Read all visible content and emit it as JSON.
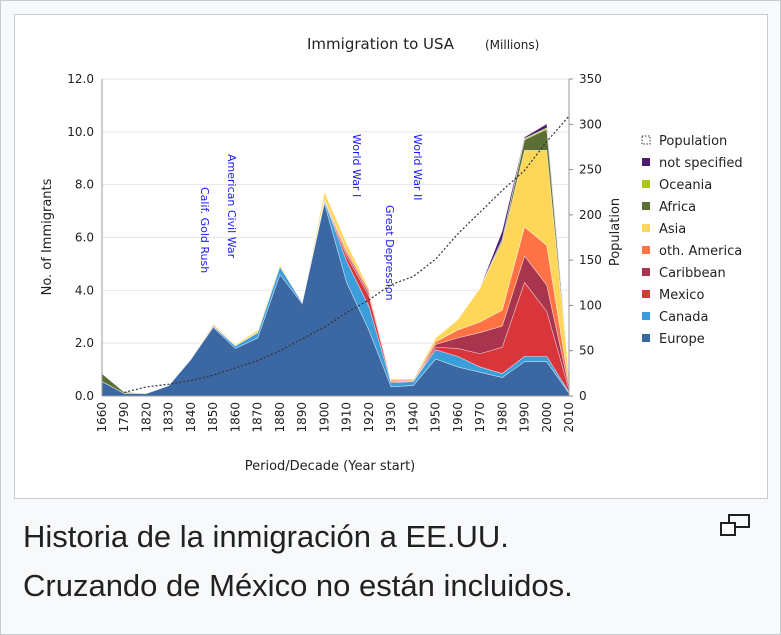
{
  "chart_data": {
    "type": "area",
    "title": "Immigration to USA",
    "subtitle": "(Millions)",
    "x_label": "Period/Decade (Year start)",
    "y_label": "No. of Immigrants",
    "y2_label": "Population",
    "stacked": true,
    "categories": [
      "1660",
      "1790",
      "1820",
      "1830",
      "1840",
      "1850",
      "1860",
      "1870",
      "1880",
      "1890",
      "1900",
      "1910",
      "1920",
      "1930",
      "1940",
      "1950",
      "1960",
      "1970",
      "1980",
      "1990",
      "2000",
      "2010"
    ],
    "ylim": [
      0,
      12
    ],
    "yticks": [
      {
        "value": 0,
        "label": "0.0"
      },
      {
        "value": 2,
        "label": "2.0"
      },
      {
        "value": 4,
        "label": "4.0"
      },
      {
        "value": 6,
        "label": "6.0"
      },
      {
        "value": 8,
        "label": "8.0"
      },
      {
        "value": 10,
        "label": "10.0"
      },
      {
        "value": 12,
        "label": "12.0"
      }
    ],
    "y2lim": [
      0,
      350
    ],
    "y2ticks": [
      0,
      50,
      100,
      150,
      200,
      250,
      300,
      350
    ],
    "grid": true,
    "legend": "right",
    "series": [
      {
        "name": "Europe",
        "color": "#3b67a3",
        "values": [
          0.55,
          0.1,
          0.1,
          0.4,
          1.4,
          2.6,
          1.8,
          2.2,
          4.6,
          3.5,
          7.3,
          4.3,
          2.5,
          0.35,
          0.4,
          1.4,
          1.1,
          0.9,
          0.7,
          1.3,
          1.3,
          0.1
        ]
      },
      {
        "name": "Canada",
        "color": "#3c9ddb",
        "values": [
          0,
          0,
          0,
          0,
          0,
          0.05,
          0.1,
          0.2,
          0.3,
          0.05,
          0.1,
          0.8,
          0.9,
          0.15,
          0.15,
          0.35,
          0.4,
          0.2,
          0.15,
          0.2,
          0.2,
          0.05
        ]
      },
      {
        "name": "Mexico",
        "color": "#d9363c",
        "values": [
          0,
          0,
          0,
          0,
          0,
          0,
          0,
          0,
          0,
          0,
          0,
          0.2,
          0.4,
          0.05,
          0,
          0.1,
          0.3,
          0.5,
          1.0,
          2.8,
          1.7,
          0.1
        ]
      },
      {
        "name": "Caribbean",
        "color": "#a8344e",
        "values": [
          0,
          0,
          0,
          0,
          0,
          0,
          0,
          0,
          0,
          0,
          0.05,
          0.1,
          0.1,
          0,
          0,
          0.1,
          0.4,
          0.8,
          0.8,
          1.0,
          1.0,
          0.1
        ]
      },
      {
        "name": "oth. America",
        "color": "#ff7245",
        "values": [
          0,
          0,
          0,
          0,
          0,
          0.05,
          0,
          0,
          0,
          0,
          0,
          0.1,
          0.1,
          0.05,
          0.05,
          0.1,
          0.3,
          0.4,
          0.6,
          1.1,
          1.5,
          0.1
        ]
      },
      {
        "name": "Asia",
        "color": "#ffd758",
        "values": [
          0,
          0,
          0,
          0,
          0,
          0.05,
          0.05,
          0.1,
          0.1,
          0,
          0.3,
          0.3,
          0.1,
          0.05,
          0.05,
          0.15,
          0.4,
          1.3,
          2.6,
          2.9,
          3.6,
          0.3
        ]
      },
      {
        "name": "Africa",
        "color": "#5b6e33",
        "values": [
          0.3,
          0.05,
          0,
          0,
          0,
          0,
          0,
          0,
          0,
          0,
          0,
          0,
          0,
          0,
          0,
          0,
          0,
          0,
          0.1,
          0.4,
          0.8,
          0.05
        ]
      },
      {
        "name": "Oceania",
        "color": "#a9c71f",
        "values": [
          0,
          0,
          0,
          0,
          0,
          0,
          0,
          0,
          0,
          0,
          0,
          0,
          0,
          0,
          0,
          0,
          0,
          0,
          0,
          0.05,
          0.05,
          0
        ]
      },
      {
        "name": "not specified",
        "color": "#4b1d6f",
        "values": [
          0,
          0,
          0,
          0,
          0,
          0,
          0,
          0,
          0,
          0,
          0,
          0,
          0,
          0,
          0,
          0,
          0,
          0,
          0.3,
          0.05,
          0.15,
          0
        ]
      },
      {
        "name": "Population",
        "color": "#333333",
        "axis": "y2",
        "dashed": true,
        "values": [
          null,
          4,
          10,
          13,
          17,
          23,
          31,
          39,
          50,
          63,
          76,
          92,
          106,
          123,
          132,
          151,
          179,
          203,
          227,
          249,
          281,
          309
        ]
      }
    ],
    "annotations": [
      "Calif. Gold Rush",
      "American Civil War",
      "World War I",
      "Great Depression",
      "World War II"
    ],
    "annotation_color": "#1a1aff"
  },
  "caption": [
    "Historia de la inmigración a EE.UU.",
    "Cruzando de México no están incluidos."
  ]
}
